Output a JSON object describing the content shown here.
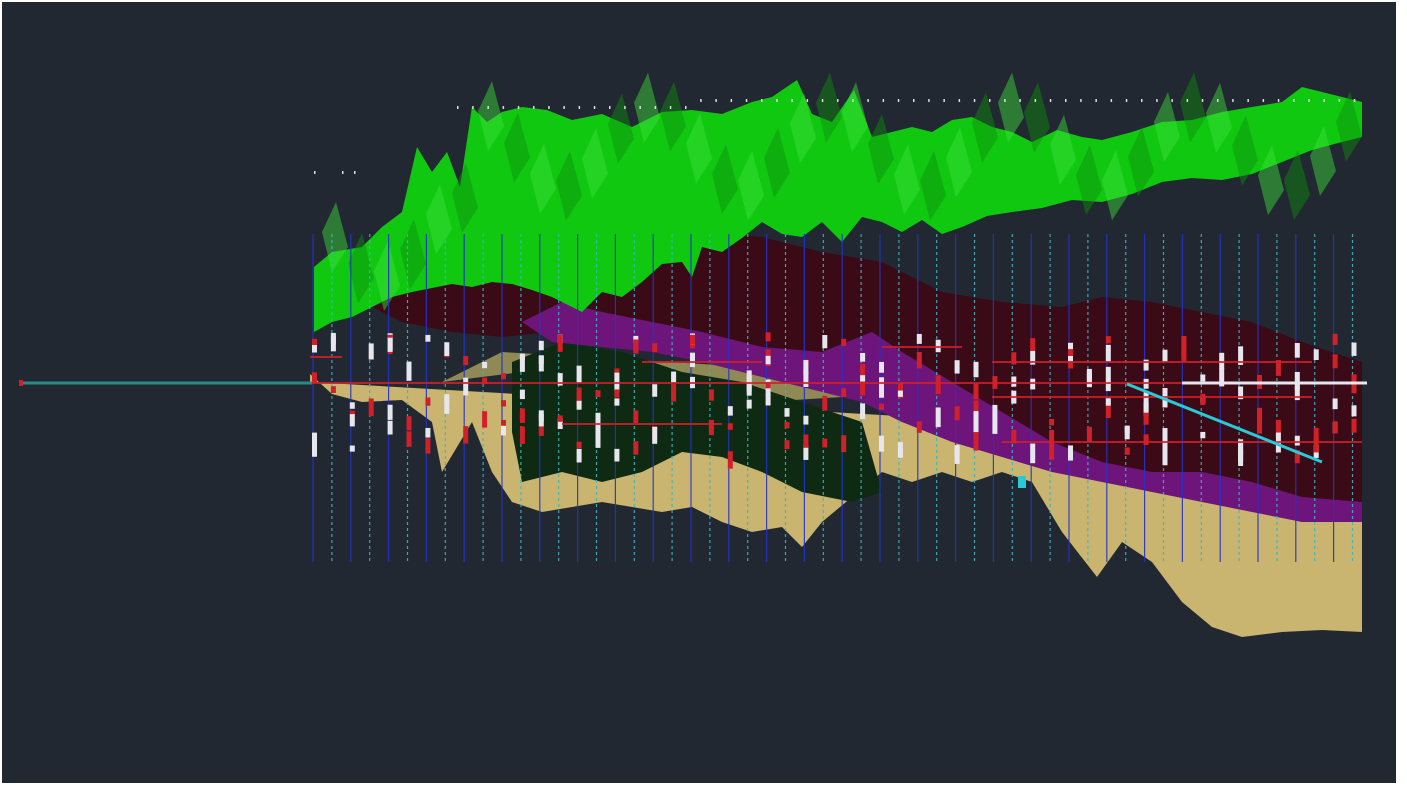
{
  "viewport": {
    "background": "#222831"
  },
  "colors": {
    "surface_green": "#11c811",
    "surface_green_light": "#3be03b",
    "surface_green_dark": "#0a8f0a",
    "section_line_blue": "#2433c8",
    "section_line_cyan": "#35b8c8",
    "layer_tan": "#c9b56f",
    "layer_tan_light": "#e2cf86",
    "layer_olive": "#8f8a55",
    "layer_maroon": "#3a0b16",
    "layer_purple": "#6d157a",
    "layer_dark_green": "#0f2a12",
    "drillhole_white": "#e6e6ee",
    "drillhole_red": "#d0202a",
    "axis_teal": "#2a8a88",
    "marker_cyan": "#29c9d6"
  },
  "icons": {
    "axis_line": "teal-axis-line",
    "axis_origin": "axis-origin-marker"
  }
}
